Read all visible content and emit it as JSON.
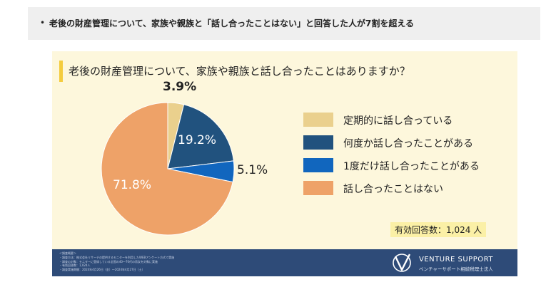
{
  "header": {
    "bullet": "•",
    "text": "老後の財産管理について、家族や親族と「話し合ったことはない」と回答した人が7割を超える"
  },
  "chart_data": {
    "type": "pie",
    "title": "老後の財産管理について、家族や親族と話し合ったことはありますか？",
    "slices": [
      {
        "label": "定期的に話し合っている",
        "value": 3.9,
        "display": "3.9%",
        "color": "#ead08d"
      },
      {
        "label": "何度か話し合ったことがある",
        "value": 19.2,
        "display": "19.2%",
        "color": "#21527e"
      },
      {
        "label": "1度だけ話し合ったことがある",
        "value": 5.1,
        "display": "5.1%",
        "color": "#1166be"
      },
      {
        "label": "話し合ったことはない",
        "value": 71.8,
        "display": "71.8%",
        "color": "#eea268"
      }
    ],
    "legend_position": "right",
    "responses_label": "有効回答数：1,024 人"
  },
  "footer": {
    "notes": [
      "＜調査概要＞",
      "・調査方法：株式会社リサーチの提供するモニターを利用したWEBアンケート方式で実施",
      "・調査の対象：モニターに登録している全国の40〜70代の男女を対象に実施",
      "・有効回答数：1,024人",
      "・調査実施期間：2024年4月26日（金）〜2024年4月27日（土）"
    ],
    "logo_name": "VENTURE SUPPORT",
    "logo_sub": "ベンチャーサポート相続税理士法人"
  }
}
